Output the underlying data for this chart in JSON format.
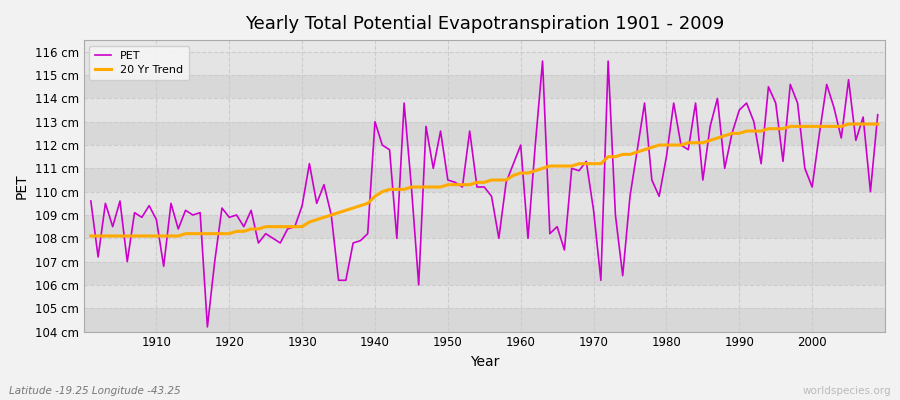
{
  "title": "Yearly Total Potential Evapotranspiration 1901 - 2009",
  "xlabel": "Year",
  "ylabel": "PET",
  "bottom_left_label": "Latitude -19.25 Longitude -43.25",
  "bottom_right_label": "worldspecies.org",
  "pet_color": "#cc00cc",
  "trend_color": "#ffaa00",
  "background_color": "#f0f0f0",
  "plot_bg_color": "#e8e8e8",
  "band_colors": [
    "#dcdcdc",
    "#e8e8e8"
  ],
  "ylim": [
    104,
    116.5
  ],
  "xlim": [
    1900,
    2010
  ],
  "years": [
    1901,
    1902,
    1903,
    1904,
    1905,
    1906,
    1907,
    1908,
    1909,
    1910,
    1911,
    1912,
    1913,
    1914,
    1915,
    1916,
    1917,
    1918,
    1919,
    1920,
    1921,
    1922,
    1923,
    1924,
    1925,
    1926,
    1927,
    1928,
    1929,
    1930,
    1931,
    1932,
    1933,
    1934,
    1935,
    1936,
    1937,
    1938,
    1939,
    1940,
    1941,
    1942,
    1943,
    1944,
    1945,
    1946,
    1947,
    1948,
    1949,
    1950,
    1951,
    1952,
    1953,
    1954,
    1955,
    1956,
    1957,
    1958,
    1959,
    1960,
    1961,
    1962,
    1963,
    1964,
    1965,
    1966,
    1967,
    1968,
    1969,
    1970,
    1971,
    1972,
    1973,
    1974,
    1975,
    1976,
    1977,
    1978,
    1979,
    1980,
    1981,
    1982,
    1983,
    1984,
    1985,
    1986,
    1987,
    1988,
    1989,
    1990,
    1991,
    1992,
    1993,
    1994,
    1995,
    1996,
    1997,
    1998,
    1999,
    2000,
    2001,
    2002,
    2003,
    2004,
    2005,
    2006,
    2007,
    2008,
    2009
  ],
  "pet_values": [
    109.6,
    107.2,
    109.5,
    108.5,
    109.6,
    107.0,
    109.1,
    108.9,
    109.4,
    108.8,
    106.8,
    109.5,
    108.4,
    109.2,
    109.0,
    109.1,
    104.2,
    107.0,
    109.3,
    108.9,
    109.0,
    108.5,
    109.2,
    107.8,
    108.2,
    108.0,
    107.8,
    108.4,
    108.5,
    109.4,
    111.2,
    109.5,
    110.3,
    109.0,
    106.2,
    106.2,
    107.8,
    107.9,
    108.2,
    113.0,
    112.0,
    111.8,
    108.0,
    113.8,
    110.2,
    106.0,
    112.8,
    111.0,
    112.6,
    110.5,
    110.4,
    110.2,
    112.6,
    110.2,
    110.2,
    109.8,
    108.0,
    110.4,
    111.2,
    112.0,
    108.0,
    112.0,
    115.6,
    108.2,
    108.5,
    107.5,
    111.0,
    110.9,
    111.3,
    109.2,
    106.2,
    115.6,
    109.0,
    106.4,
    109.8,
    111.8,
    113.8,
    110.5,
    109.8,
    111.5,
    113.8,
    112.0,
    111.8,
    113.8,
    110.5,
    112.8,
    114.0,
    111.0,
    112.5,
    113.5,
    113.8,
    113.0,
    111.2,
    114.5,
    113.8,
    111.3,
    114.6,
    113.8,
    111.0,
    110.2,
    112.5,
    114.6,
    113.6,
    112.3,
    114.8,
    112.2,
    113.2,
    110.0,
    113.3
  ],
  "trend_values": [
    108.1,
    108.1,
    108.1,
    108.1,
    108.1,
    108.1,
    108.1,
    108.1,
    108.1,
    108.1,
    108.1,
    108.1,
    108.1,
    108.2,
    108.2,
    108.2,
    108.2,
    108.2,
    108.2,
    108.2,
    108.3,
    108.3,
    108.4,
    108.4,
    108.5,
    108.5,
    108.5,
    108.5,
    108.5,
    108.5,
    108.7,
    108.8,
    108.9,
    109.0,
    109.1,
    109.2,
    109.3,
    109.4,
    109.5,
    109.8,
    110.0,
    110.1,
    110.1,
    110.1,
    110.2,
    110.2,
    110.2,
    110.2,
    110.2,
    110.3,
    110.3,
    110.3,
    110.3,
    110.4,
    110.4,
    110.5,
    110.5,
    110.5,
    110.7,
    110.8,
    110.8,
    110.9,
    111.0,
    111.1,
    111.1,
    111.1,
    111.1,
    111.2,
    111.2,
    111.2,
    111.2,
    111.5,
    111.5,
    111.6,
    111.6,
    111.7,
    111.8,
    111.9,
    112.0,
    112.0,
    112.0,
    112.0,
    112.1,
    112.1,
    112.1,
    112.2,
    112.3,
    112.4,
    112.5,
    112.5,
    112.6,
    112.6,
    112.6,
    112.7,
    112.7,
    112.7,
    112.8,
    112.8,
    112.8,
    112.8,
    112.8,
    112.8,
    112.8,
    112.8,
    112.9,
    112.9,
    112.9,
    112.9,
    112.9
  ],
  "legend_labels": [
    "PET",
    "20 Yr Trend"
  ],
  "ytick_vals": [
    104,
    105,
    106,
    107,
    108,
    109,
    110,
    111,
    112,
    113,
    114,
    115,
    116
  ],
  "xtick_vals": [
    1910,
    1920,
    1930,
    1940,
    1950,
    1960,
    1970,
    1980,
    1990,
    2000
  ]
}
